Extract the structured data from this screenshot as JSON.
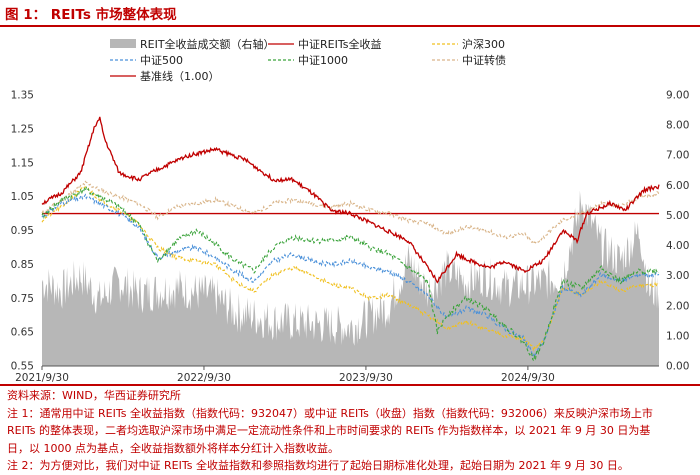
{
  "figure": {
    "title": "图 1： REITs 市场整体表现"
  },
  "chart_data": {
    "type": "line",
    "left_axis": {
      "min": 0.55,
      "max": 1.35,
      "ticks": [
        "1.35",
        "1.25",
        "1.15",
        "1.05",
        "0.95",
        "0.85",
        "0.75",
        "0.65",
        "0.55"
      ]
    },
    "right_axis": {
      "min": 0,
      "max": 9,
      "ticks": [
        "9.00",
        "8.00",
        "7.00",
        "6.00",
        "5.00",
        "4.00",
        "3.00",
        "2.00",
        "1.00",
        "0.00"
      ]
    },
    "x_axis": {
      "ticks": [
        "2021/9/30",
        "2022/9/30",
        "2023/9/30",
        "2024/9/30"
      ]
    },
    "legend": [
      {
        "name": "REIT全收益成交额（右轴）",
        "color": "#b7b7b7",
        "style": "area"
      },
      {
        "name": "中证REITs全收益",
        "color": "#c00000",
        "style": "solid"
      },
      {
        "name": "沪深300",
        "color": "#f0c020",
        "style": "dashed"
      },
      {
        "name": "中证500",
        "color": "#4a90d9",
        "style": "dashed"
      },
      {
        "name": "中证1000",
        "color": "#3aa33a",
        "style": "dashed"
      },
      {
        "name": "中证转债",
        "color": "#d9b58a",
        "style": "dashed"
      },
      {
        "name": "基准线（1.00）",
        "color": "#c00000",
        "style": "solid"
      }
    ],
    "baseline": 1.0,
    "series_keypoints": {
      "turnover": [
        [
          0,
          2.8
        ],
        [
          20,
          2.5
        ],
        [
          40,
          3.0
        ],
        [
          60,
          2.2
        ],
        [
          80,
          2.8
        ],
        [
          100,
          2.4
        ],
        [
          140,
          2.6
        ],
        [
          180,
          2.3
        ],
        [
          200,
          1.8
        ],
        [
          240,
          1.5
        ],
        [
          280,
          1.4
        ],
        [
          320,
          1.3
        ],
        [
          360,
          2.0
        ],
        [
          380,
          3.5
        ],
        [
          400,
          2.5
        ],
        [
          420,
          3.2
        ],
        [
          440,
          2.8
        ],
        [
          460,
          3.0
        ],
        [
          480,
          2.6
        ],
        [
          520,
          2.8
        ],
        [
          540,
          3.0
        ],
        [
          560,
          5.5
        ],
        [
          580,
          4.0
        ],
        [
          600,
          3.5
        ],
        [
          620,
          4.5
        ],
        [
          630,
          2.5
        ]
      ],
      "reits": [
        [
          0,
          1.03
        ],
        [
          20,
          1.06
        ],
        [
          40,
          1.12
        ],
        [
          55,
          1.26
        ],
        [
          60,
          1.28
        ],
        [
          65,
          1.22
        ],
        [
          80,
          1.12
        ],
        [
          100,
          1.1
        ],
        [
          120,
          1.13
        ],
        [
          150,
          1.17
        ],
        [
          180,
          1.19
        ],
        [
          210,
          1.16
        ],
        [
          240,
          1.1
        ],
        [
          260,
          1.1
        ],
        [
          280,
          1.06
        ],
        [
          300,
          1.01
        ],
        [
          320,
          1.0
        ],
        [
          350,
          0.96
        ],
        [
          380,
          0.92
        ],
        [
          410,
          0.8
        ],
        [
          430,
          0.88
        ],
        [
          445,
          0.86
        ],
        [
          465,
          0.84
        ],
        [
          480,
          0.86
        ],
        [
          500,
          0.83
        ],
        [
          520,
          0.86
        ],
        [
          540,
          0.95
        ],
        [
          555,
          0.92
        ],
        [
          565,
          1.0
        ],
        [
          590,
          1.03
        ],
        [
          605,
          1.01
        ],
        [
          625,
          1.07
        ],
        [
          640,
          1.08
        ]
      ],
      "hs300": [
        [
          0,
          0.98
        ],
        [
          20,
          1.02
        ],
        [
          45,
          1.08
        ],
        [
          60,
          1.04
        ],
        [
          80,
          1.01
        ],
        [
          100,
          0.97
        ],
        [
          120,
          0.9
        ],
        [
          140,
          0.87
        ],
        [
          160,
          0.86
        ],
        [
          180,
          0.85
        ],
        [
          200,
          0.8
        ],
        [
          220,
          0.77
        ],
        [
          240,
          0.82
        ],
        [
          260,
          0.84
        ],
        [
          280,
          0.82
        ],
        [
          300,
          0.79
        ],
        [
          320,
          0.78
        ],
        [
          340,
          0.75
        ],
        [
          360,
          0.76
        ],
        [
          380,
          0.73
        ],
        [
          400,
          0.7
        ],
        [
          420,
          0.66
        ],
        [
          440,
          0.68
        ],
        [
          460,
          0.66
        ],
        [
          480,
          0.64
        ],
        [
          500,
          0.63
        ],
        [
          510,
          0.6
        ],
        [
          520,
          0.62
        ],
        [
          540,
          0.78
        ],
        [
          560,
          0.76
        ],
        [
          580,
          0.8
        ],
        [
          600,
          0.77
        ],
        [
          620,
          0.79
        ],
        [
          640,
          0.79
        ]
      ],
      "zz500": [
        [
          0,
          0.99
        ],
        [
          20,
          1.03
        ],
        [
          45,
          1.05
        ],
        [
          60,
          1.03
        ],
        [
          80,
          1.0
        ],
        [
          100,
          0.96
        ],
        [
          120,
          0.87
        ],
        [
          140,
          0.89
        ],
        [
          160,
          0.9
        ],
        [
          180,
          0.87
        ],
        [
          200,
          0.83
        ],
        [
          220,
          0.8
        ],
        [
          240,
          0.86
        ],
        [
          260,
          0.88
        ],
        [
          280,
          0.86
        ],
        [
          300,
          0.85
        ],
        [
          320,
          0.86
        ],
        [
          340,
          0.84
        ],
        [
          360,
          0.83
        ],
        [
          380,
          0.8
        ],
        [
          400,
          0.76
        ],
        [
          420,
          0.69
        ],
        [
          440,
          0.72
        ],
        [
          460,
          0.7
        ],
        [
          480,
          0.66
        ],
        [
          500,
          0.63
        ],
        [
          510,
          0.58
        ],
        [
          520,
          0.62
        ],
        [
          540,
          0.78
        ],
        [
          560,
          0.76
        ],
        [
          580,
          0.82
        ],
        [
          600,
          0.8
        ],
        [
          620,
          0.82
        ],
        [
          640,
          0.82
        ]
      ],
      "zz1000": [
        [
          0,
          0.99
        ],
        [
          20,
          1.04
        ],
        [
          45,
          1.07
        ],
        [
          60,
          1.05
        ],
        [
          80,
          1.02
        ],
        [
          100,
          0.97
        ],
        [
          120,
          0.86
        ],
        [
          140,
          0.92
        ],
        [
          160,
          0.95
        ],
        [
          180,
          0.91
        ],
        [
          200,
          0.86
        ],
        [
          220,
          0.83
        ],
        [
          240,
          0.9
        ],
        [
          260,
          0.93
        ],
        [
          280,
          0.92
        ],
        [
          300,
          0.92
        ],
        [
          320,
          0.93
        ],
        [
          340,
          0.9
        ],
        [
          360,
          0.88
        ],
        [
          380,
          0.84
        ],
        [
          400,
          0.8
        ],
        [
          410,
          0.65
        ],
        [
          420,
          0.7
        ],
        [
          440,
          0.75
        ],
        [
          460,
          0.72
        ],
        [
          480,
          0.67
        ],
        [
          500,
          0.62
        ],
        [
          510,
          0.57
        ],
        [
          520,
          0.62
        ],
        [
          540,
          0.8
        ],
        [
          560,
          0.78
        ],
        [
          580,
          0.84
        ],
        [
          600,
          0.8
        ],
        [
          620,
          0.83
        ],
        [
          640,
          0.83
        ]
      ],
      "cb": [
        [
          0,
          1.0
        ],
        [
          20,
          1.04
        ],
        [
          45,
          1.09
        ],
        [
          60,
          1.07
        ],
        [
          80,
          1.05
        ],
        [
          100,
          1.03
        ],
        [
          120,
          0.99
        ],
        [
          140,
          1.02
        ],
        [
          160,
          1.03
        ],
        [
          180,
          1.04
        ],
        [
          200,
          1.02
        ],
        [
          220,
          1.0
        ],
        [
          240,
          1.03
        ],
        [
          260,
          1.04
        ],
        [
          280,
          1.03
        ],
        [
          300,
          1.02
        ],
        [
          320,
          1.03
        ],
        [
          340,
          1.01
        ],
        [
          360,
          1.0
        ],
        [
          380,
          0.98
        ],
        [
          400,
          0.97
        ],
        [
          420,
          0.94
        ],
        [
          440,
          0.96
        ],
        [
          460,
          0.95
        ],
        [
          480,
          0.93
        ],
        [
          500,
          0.94
        ],
        [
          510,
          0.91
        ],
        [
          520,
          0.93
        ],
        [
          540,
          0.98
        ],
        [
          560,
          1.0
        ],
        [
          580,
          1.03
        ],
        [
          600,
          1.02
        ],
        [
          620,
          1.05
        ],
        [
          640,
          1.06
        ]
      ]
    }
  },
  "notes": {
    "source": "资料来源：WIND，华西证券研究所",
    "note1_line1": "注 1：通常用中证 REITs 全收益指数（指数代码：932047）或中证 REITs（收盘）指数（指数代码：932006）来反映沪深市场上市",
    "note1_line2": "REITs 的整体表现，二者均选取沪深市场中满足一定流动性条件和上市时间要求的 REITs 作为指数样本，以 2021 年 9 月 30 日为基",
    "note1_line3": "日，以 1000 点为基点，全收益指数额外将样本分红计入指数收益。",
    "note2": "注 2：为方便对比，我们对中证 REITs 全收益指数和参照指数均进行了起始日期标准化处理，起始日期为 2021 年 9 月 30 日。"
  }
}
